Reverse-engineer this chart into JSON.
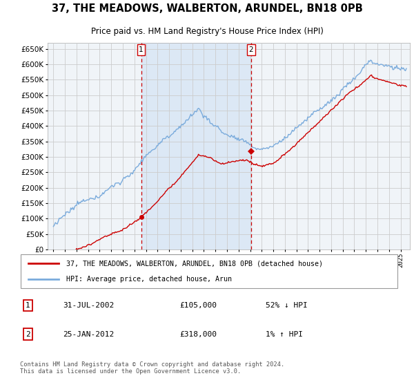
{
  "title": "37, THE MEADOWS, WALBERTON, ARUNDEL, BN18 0PB",
  "subtitle": "Price paid vs. HM Land Registry's House Price Index (HPI)",
  "ylim": [
    0,
    670000
  ],
  "yticks": [
    0,
    50000,
    100000,
    150000,
    200000,
    250000,
    300000,
    350000,
    400000,
    450000,
    500000,
    550000,
    600000,
    650000
  ],
  "legend_entries": [
    "37, THE MEADOWS, WALBERTON, ARUNDEL, BN18 0PB (detached house)",
    "HPI: Average price, detached house, Arun"
  ],
  "sale1_label": "1",
  "sale1_date": "31-JUL-2002",
  "sale1_price": "£105,000",
  "sale1_hpi": "52% ↓ HPI",
  "sale1_year": 2002.58,
  "sale1_value": 105000,
  "sale2_label": "2",
  "sale2_date": "25-JAN-2012",
  "sale2_price": "£318,000",
  "sale2_hpi": "1% ↑ HPI",
  "sale2_year": 2012.07,
  "sale2_value": 318000,
  "footer": "Contains HM Land Registry data © Crown copyright and database right 2024.\nThis data is licensed under the Open Government Licence v3.0.",
  "hpi_color": "#7aabdc",
  "price_color": "#cc0000",
  "shade_color": "#dce8f5",
  "grid_color": "#cccccc",
  "background_color": "#ffffff",
  "plot_bg_color": "#f0f4f8"
}
